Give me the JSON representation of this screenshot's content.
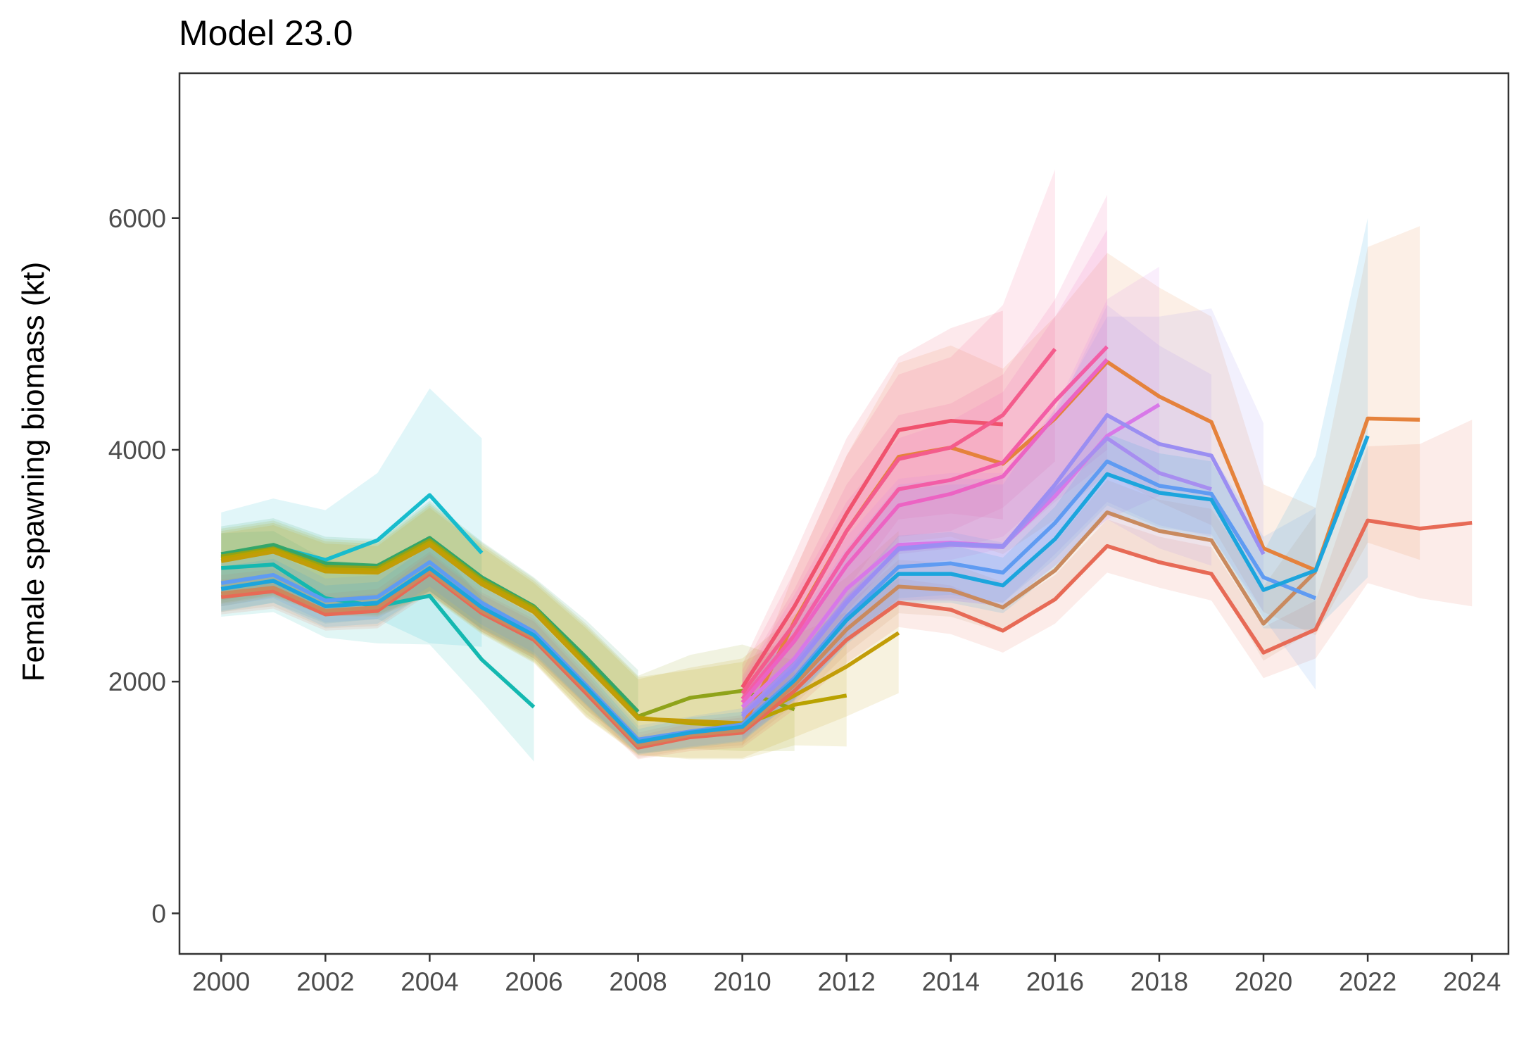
{
  "chart_data": {
    "type": "line",
    "title": "Model 23.0",
    "xlabel": "",
    "ylabel": "Female spawning biomass (kt)",
    "xlim": [
      1999.2,
      2024.7
    ],
    "ylim": [
      -350,
      7250
    ],
    "x_ticks": [
      2000,
      2002,
      2004,
      2006,
      2008,
      2010,
      2012,
      2014,
      2016,
      2018,
      2020,
      2022,
      2024
    ],
    "x_tick_labels": [
      "2000",
      "2002",
      "2004",
      "2006",
      "2008",
      "2010",
      "2012",
      "2014",
      "2016",
      "2018",
      "2020",
      "2022",
      "2024"
    ],
    "y_ticks": [
      0,
      2000,
      4000,
      6000
    ],
    "y_tick_labels": [
      "0",
      "2000",
      "4000",
      "6000"
    ],
    "grid": false,
    "legend": "none",
    "series": [
      {
        "color": "#14b8b0",
        "x": [
          2000,
          2001,
          2002,
          2003,
          2004,
          2005,
          2006
        ],
        "y": [
          2980,
          3010,
          2720,
          2650,
          2740,
          2190,
          1780
        ],
        "lower": [
          2560,
          2600,
          2380,
          2330,
          2320,
          1830,
          1310
        ],
        "upper": [
          3280,
          3300,
          3050,
          3010,
          3230,
          2720,
          2350
        ]
      },
      {
        "color": "#17bccd",
        "x": [
          2000,
          2001,
          2002,
          2003,
          2004,
          2005
        ],
        "y": [
          3070,
          3170,
          3050,
          3220,
          3610,
          3110
        ],
        "lower": [
          2600,
          2680,
          2500,
          2540,
          2330,
          2300
        ],
        "upper": [
          3460,
          3580,
          3480,
          3800,
          4530,
          4100
        ]
      },
      {
        "color": "#33a66a",
        "x": [
          2000,
          2001,
          2002,
          2003,
          2004,
          2005,
          2006,
          2007,
          2008
        ],
        "y": [
          3100,
          3180,
          3020,
          3000,
          3240,
          2900,
          2650,
          2210,
          1740
        ],
        "lower": [
          2700,
          2780,
          2620,
          2600,
          2780,
          2450,
          2200,
          1760,
          1420
        ],
        "upper": [
          3340,
          3410,
          3250,
          3230,
          3560,
          3210,
          2900,
          2530,
          2100
        ]
      },
      {
        "color": "#8fa31a",
        "x": [
          2000,
          2001,
          2002,
          2003,
          2004,
          2005,
          2006,
          2007,
          2008,
          2009,
          2010,
          2011
        ],
        "y": [
          3080,
          3150,
          2990,
          2980,
          3220,
          2880,
          2640,
          2170,
          1700,
          1860,
          1920,
          1760
        ],
        "lower": [
          2680,
          2750,
          2590,
          2580,
          2760,
          2430,
          2180,
          1720,
          1380,
          1420,
          1400,
          1400
        ],
        "upper": [
          3320,
          3390,
          3230,
          3210,
          3540,
          3200,
          2890,
          2500,
          2050,
          2230,
          2320,
          2180
        ]
      },
      {
        "color": "#b9a200",
        "x": [
          2000,
          2001,
          2002,
          2003,
          2004,
          2005,
          2006,
          2007,
          2008,
          2009,
          2010,
          2011,
          2012
        ],
        "y": [
          3060,
          3140,
          2970,
          2960,
          3200,
          2860,
          2620,
          2150,
          1690,
          1640,
          1620,
          1800,
          1880
        ],
        "lower": [
          2670,
          2740,
          2580,
          2570,
          2750,
          2420,
          2170,
          1700,
          1370,
          1330,
          1330,
          1450,
          1440
        ],
        "upper": [
          3300,
          3370,
          3210,
          3190,
          3520,
          3180,
          2870,
          2480,
          2040,
          2100,
          2170,
          2400,
          2600
        ]
      },
      {
        "color": "#c29d08",
        "x": [
          2000,
          2001,
          2002,
          2003,
          2004,
          2005,
          2006,
          2007,
          2008,
          2009,
          2010,
          2011,
          2012,
          2013
        ],
        "y": [
          3040,
          3120,
          2950,
          2940,
          3180,
          2840,
          2600,
          2140,
          1680,
          1660,
          1640,
          1880,
          2130,
          2420
        ],
        "lower": [
          2650,
          2730,
          2570,
          2560,
          2740,
          2410,
          2160,
          1690,
          1360,
          1340,
          1340,
          1520,
          1700,
          1900
        ],
        "upper": [
          3280,
          3350,
          3190,
          3170,
          3500,
          3160,
          2850,
          2460,
          2020,
          2120,
          2200,
          2580,
          2900,
          3300
        ]
      },
      {
        "color": "#e76a56",
        "x": [
          2000,
          2001,
          2002,
          2003,
          2004,
          2005,
          2006,
          2007,
          2008,
          2009,
          2010,
          2011,
          2012,
          2013,
          2014,
          2015,
          2016,
          2017,
          2018,
          2019,
          2020,
          2021,
          2022,
          2023,
          2024
        ],
        "y": [
          2730,
          2780,
          2580,
          2610,
          2930,
          2590,
          2360,
          1900,
          1430,
          1520,
          1560,
          1920,
          2360,
          2680,
          2620,
          2440,
          2710,
          3170,
          3030,
          2930,
          2250,
          2450,
          3390,
          3320,
          3370
        ],
        "lower": [
          2580,
          2630,
          2440,
          2460,
          2760,
          2430,
          2200,
          1760,
          1330,
          1400,
          1430,
          1760,
          2160,
          2470,
          2410,
          2250,
          2500,
          2940,
          2810,
          2700,
          2030,
          2200,
          2850,
          2720,
          2650
        ],
        "upper": [
          2880,
          2930,
          2720,
          2760,
          3100,
          2750,
          2520,
          2040,
          1530,
          1640,
          1690,
          2080,
          2560,
          2890,
          2830,
          2630,
          2920,
          3400,
          3250,
          3160,
          2470,
          2700,
          4030,
          4050,
          4260
        ]
      },
      {
        "color": "#c98a5f",
        "x": [
          2000,
          2001,
          2002,
          2003,
          2004,
          2005,
          2006,
          2007,
          2008,
          2009,
          2010,
          2011,
          2012,
          2013,
          2014,
          2015,
          2016,
          2017,
          2018,
          2019,
          2020,
          2021
        ],
        "y": [
          2760,
          2810,
          2610,
          2640,
          2950,
          2610,
          2380,
          1930,
          1450,
          1540,
          1580,
          1970,
          2450,
          2820,
          2790,
          2640,
          2960,
          3460,
          3300,
          3220,
          2500,
          2950
        ],
        "lower": [
          2600,
          2650,
          2460,
          2480,
          2780,
          2450,
          2220,
          1790,
          1340,
          1420,
          1450,
          1800,
          2240,
          2590,
          2560,
          2420,
          2720,
          3180,
          3030,
          2950,
          2180,
          2450
        ],
        "upper": [
          2920,
          2970,
          2760,
          2800,
          3120,
          2770,
          2540,
          2070,
          1560,
          1660,
          1710,
          2140,
          2660,
          3050,
          3020,
          2860,
          3200,
          3740,
          3570,
          3490,
          2820,
          3450
        ]
      },
      {
        "color": "#e5823c",
        "x": [
          2010,
          2011,
          2012,
          2013,
          2014,
          2015,
          2016,
          2017,
          2018,
          2019,
          2020,
          2021,
          2022,
          2023
        ],
        "y": [
          1600,
          2520,
          3300,
          3940,
          4020,
          3880,
          4270,
          4760,
          4460,
          4240,
          3150,
          2960,
          4270,
          4260
        ],
        "lower": [
          1450,
          2100,
          2700,
          3200,
          3250,
          3100,
          3400,
          3800,
          3550,
          3350,
          2600,
          2400,
          3200,
          3050
        ],
        "upper": [
          1780,
          2950,
          3950,
          4750,
          4900,
          4700,
          5150,
          5700,
          5400,
          5150,
          3700,
          3500,
          5750,
          5930
        ]
      },
      {
        "color": "#f0526e",
        "x": [
          2010,
          2011,
          2012,
          2013,
          2014,
          2015
        ],
        "y": [
          1950,
          2650,
          3450,
          4170,
          4250,
          4220
        ],
        "lower": [
          1700,
          2200,
          2800,
          3400,
          3450,
          3400
        ],
        "upper": [
          2150,
          3100,
          4100,
          4800,
          5050,
          5200
        ]
      },
      {
        "color": "#f45c8c",
        "x": [
          2010,
          2011,
          2012,
          2013,
          2014,
          2015,
          2016
        ],
        "y": [
          1900,
          2500,
          3300,
          3920,
          4020,
          4300,
          4870
        ],
        "lower": [
          1650,
          2100,
          2700,
          3250,
          3300,
          3500,
          3900
        ],
        "upper": [
          2100,
          2950,
          3950,
          4650,
          4800,
          5250,
          6420
        ]
      },
      {
        "color": "#f35da6",
        "x": [
          2010,
          2011,
          2012,
          2013,
          2014,
          2015,
          2016,
          2017
        ],
        "y": [
          1850,
          2400,
          3100,
          3660,
          3740,
          3890,
          4420,
          4890
        ],
        "lower": [
          1600,
          2050,
          2600,
          3100,
          3150,
          3250,
          3650,
          4000
        ],
        "upper": [
          2050,
          2800,
          3700,
          4300,
          4400,
          4650,
          5300,
          6200
        ]
      },
      {
        "color": "#ec63c3",
        "x": [
          2010,
          2011,
          2012,
          2013,
          2014,
          2015,
          2016,
          2017
        ],
        "y": [
          1820,
          2350,
          3000,
          3520,
          3620,
          3770,
          4290,
          4780
        ],
        "lower": [
          1580,
          2000,
          2550,
          3000,
          3050,
          3150,
          3550,
          3900
        ],
        "upper": [
          2020,
          2750,
          3550,
          4100,
          4250,
          4500,
          5150,
          5900
        ]
      },
      {
        "color": "#d878e8",
        "x": [
          2010,
          2011,
          2012,
          2013,
          2014,
          2015,
          2016,
          2017,
          2018
        ],
        "y": [
          1780,
          2200,
          2800,
          3180,
          3200,
          3170,
          3600,
          4120,
          4390
        ],
        "lower": [
          1550,
          1900,
          2400,
          2700,
          2700,
          2650,
          3000,
          3400,
          3600
        ],
        "upper": [
          1980,
          2550,
          3250,
          3750,
          3800,
          3800,
          4350,
          5300,
          5580
        ]
      },
      {
        "color": "#a78ef0",
        "x": [
          2010,
          2011,
          2012,
          2013,
          2014,
          2015,
          2016,
          2017,
          2018,
          2019
        ],
        "y": [
          1720,
          2150,
          2700,
          3140,
          3180,
          3160,
          3650,
          4100,
          3800,
          3660
        ],
        "lower": [
          1520,
          1850,
          2350,
          2700,
          2700,
          2650,
          3000,
          3400,
          3150,
          3000
        ],
        "upper": [
          1920,
          2500,
          3150,
          3700,
          3750,
          3750,
          4300,
          5250,
          4900,
          4650
        ]
      },
      {
        "color": "#9b8ef2",
        "x": [
          2010,
          2011,
          2012,
          2013,
          2014,
          2015,
          2016,
          2017,
          2018,
          2019,
          2020
        ],
        "y": [
          1700,
          2120,
          2680,
          3150,
          3190,
          3170,
          3700,
          4300,
          4050,
          3950,
          3100
        ],
        "lower": [
          1500,
          1830,
          2330,
          2700,
          2720,
          2680,
          3100,
          3550,
          3350,
          3250,
          2600
        ],
        "upper": [
          1900,
          2450,
          3100,
          3650,
          3700,
          3700,
          4350,
          5150,
          5150,
          5220,
          4230
        ]
      },
      {
        "color": "#5f9bf2",
        "x": [
          2000,
          2001,
          2002,
          2003,
          2004,
          2005,
          2006,
          2007,
          2008,
          2009,
          2010,
          2011,
          2012,
          2013,
          2014,
          2015,
          2016,
          2017,
          2018,
          2019,
          2020,
          2021
        ],
        "y": [
          2850,
          2920,
          2700,
          2730,
          3030,
          2680,
          2430,
          1970,
          1500,
          1570,
          1630,
          2030,
          2560,
          2990,
          3020,
          2940,
          3370,
          3900,
          3690,
          3620,
          2900,
          2720
        ],
        "lower": [
          2650,
          2720,
          2510,
          2540,
          2820,
          2490,
          2250,
          1810,
          1380,
          1440,
          1490,
          1850,
          2340,
          2720,
          2750,
          2680,
          3060,
          3520,
          3330,
          3270,
          2550,
          1930
        ],
        "upper": [
          3050,
          3120,
          2890,
          2920,
          3240,
          2870,
          2610,
          2130,
          1620,
          1700,
          1770,
          2210,
          2780,
          3260,
          3290,
          3200,
          3680,
          4280,
          4050,
          3970,
          3250,
          3500
        ]
      },
      {
        "color": "#1ca5dd",
        "x": [
          2000,
          2001,
          2002,
          2003,
          2004,
          2005,
          2006,
          2007,
          2008,
          2009,
          2010,
          2011,
          2012,
          2013,
          2014,
          2015,
          2016,
          2017,
          2018,
          2019,
          2020,
          2021,
          2022
        ],
        "y": [
          2800,
          2870,
          2650,
          2680,
          2980,
          2640,
          2400,
          1950,
          1480,
          1560,
          1610,
          2010,
          2530,
          2930,
          2930,
          2830,
          3230,
          3790,
          3630,
          3570,
          2790,
          2960,
          4120
        ],
        "lower": [
          2610,
          2680,
          2470,
          2500,
          2780,
          2460,
          2230,
          1800,
          1370,
          1430,
          1480,
          1840,
          2320,
          2680,
          2680,
          2590,
          2950,
          3440,
          3290,
          3240,
          2460,
          2450,
          2900
        ],
        "upper": [
          2990,
          3060,
          2830,
          2860,
          3180,
          2820,
          2570,
          2100,
          1590,
          1690,
          1740,
          2180,
          2740,
          3180,
          3180,
          3070,
          3510,
          4140,
          3970,
          3900,
          3120,
          3950,
          6000
        ]
      }
    ]
  }
}
